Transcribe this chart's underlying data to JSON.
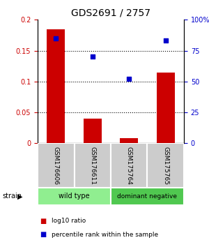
{
  "title": "GDS2691 / 2757",
  "samples": [
    "GSM176606",
    "GSM176611",
    "GSM175764",
    "GSM175765"
  ],
  "log10_ratio": [
    0.185,
    0.04,
    0.008,
    0.115
  ],
  "percentile_rank": [
    85,
    70,
    52,
    83
  ],
  "bar_color": "#cc0000",
  "dot_color": "#0000cc",
  "ylim_left": [
    0,
    0.2
  ],
  "ylim_right": [
    0,
    100
  ],
  "yticks_left": [
    0,
    0.05,
    0.1,
    0.15,
    0.2
  ],
  "ytick_labels_left": [
    "0",
    "0.05",
    "0.1",
    "0.15",
    "0.2"
  ],
  "yticks_right": [
    0,
    25,
    50,
    75,
    100
  ],
  "ytick_labels_right": [
    "0",
    "25",
    "50",
    "75",
    "100%"
  ],
  "dotted_lines": [
    0.05,
    0.1,
    0.15
  ],
  "groups": [
    {
      "label": "wild type",
      "indices": [
        0,
        1
      ],
      "color": "#90ee90"
    },
    {
      "label": "dominant negative",
      "indices": [
        2,
        3
      ],
      "color": "#50c850"
    }
  ],
  "strain_label": "strain",
  "legend_items": [
    {
      "color": "#cc0000",
      "label": "log10 ratio"
    },
    {
      "color": "#0000cc",
      "label": "percentile rank within the sample"
    }
  ],
  "label_area_color": "#cccccc"
}
